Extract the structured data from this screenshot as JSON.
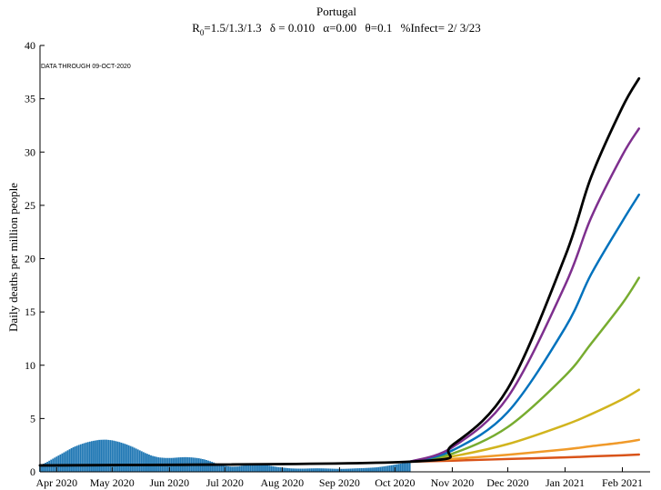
{
  "chart_data": {
    "type": "line",
    "title": "Portugal",
    "subtitle": {
      "r0_prefix": "R",
      "r0_sub": "0",
      "r0_values": "=1.5/1.3/1.3",
      "delta": "δ = 0.010",
      "alpha": "α=0.00",
      "theta": "θ=0.1",
      "infect": "%Infect= 2/ 3/23"
    },
    "annotation": "DATA THROUGH 09-OCT-2020",
    "xlabel": "",
    "ylabel": "Daily deaths per million people",
    "ylim": [
      0,
      40
    ],
    "yticks": [
      0,
      5,
      10,
      15,
      20,
      25,
      30,
      35,
      40
    ],
    "xlim": [
      "2020-03-23",
      "2021-02-16"
    ],
    "xticks": [
      {
        "date": "2020-04-01",
        "label": "Apr 2020"
      },
      {
        "date": "2020-05-01",
        "label": "May 2020"
      },
      {
        "date": "2020-06-01",
        "label": "Jun 2020"
      },
      {
        "date": "2020-07-01",
        "label": "Jul 2020"
      },
      {
        "date": "2020-08-01",
        "label": "Aug 2020"
      },
      {
        "date": "2020-09-01",
        "label": "Sep 2020"
      },
      {
        "date": "2020-10-01",
        "label": "Oct 2020"
      },
      {
        "date": "2020-11-01",
        "label": "Nov 2020"
      },
      {
        "date": "2020-12-01",
        "label": "Dec 2020"
      },
      {
        "date": "2021-01-01",
        "label": "Jan 2021"
      },
      {
        "date": "2021-02-01",
        "label": "Feb 2021"
      }
    ],
    "observed_bars": {
      "color": "#1f77b4",
      "start_date": "2020-03-23",
      "end_date": "2020-10-09",
      "values": [
        0.6,
        0.9,
        1.25,
        1.6,
        1.95,
        2.3,
        2.55,
        2.75,
        2.9,
        3.0,
        3.02,
        2.95,
        2.8,
        2.6,
        2.35,
        2.05,
        1.75,
        1.5,
        1.35,
        1.3,
        1.3,
        1.35,
        1.38,
        1.35,
        1.28,
        1.15,
        0.95,
        0.72,
        0.55,
        0.48,
        0.5,
        0.6,
        0.7,
        0.72,
        0.65,
        0.55,
        0.45,
        0.38,
        0.32,
        0.3,
        0.3,
        0.32,
        0.33,
        0.32,
        0.3,
        0.28,
        0.28,
        0.3,
        0.33,
        0.35,
        0.38,
        0.42,
        0.5,
        0.6,
        0.7,
        0.82,
        0.95
      ]
    },
    "series": [
      {
        "color": "#000000",
        "width": 2.8,
        "x": [
          "2020-03-23",
          "2020-10-09",
          "2020-11-01",
          "2020-12-01",
          "2021-01-01",
          "2021-01-15",
          "2021-02-01",
          "2021-02-10"
        ],
        "values": [
          0.6,
          0.95,
          2.5,
          7.8,
          20.2,
          27.6,
          34.2,
          36.9
        ]
      },
      {
        "color": "#7e2f8e",
        "width": 2.5,
        "x": [
          "2020-10-09",
          "2020-11-01",
          "2020-12-01",
          "2021-01-01",
          "2021-01-15",
          "2021-02-01",
          "2021-02-10"
        ],
        "values": [
          0.95,
          2.3,
          7.0,
          17.5,
          23.8,
          29.7,
          32.2
        ]
      },
      {
        "color": "#0072bd",
        "width": 2.5,
        "x": [
          "2020-10-09",
          "2020-11-01",
          "2020-12-01",
          "2021-01-01",
          "2021-01-15",
          "2021-02-01",
          "2021-02-10"
        ],
        "values": [
          0.95,
          2.0,
          5.6,
          13.5,
          18.5,
          23.5,
          26.0
        ]
      },
      {
        "color": "#77ac30",
        "width": 2.5,
        "x": [
          "2020-10-09",
          "2020-11-01",
          "2020-12-01",
          "2021-01-01",
          "2021-01-15",
          "2021-02-01",
          "2021-02-10"
        ],
        "values": [
          0.95,
          1.7,
          4.2,
          9.0,
          12.0,
          15.8,
          18.2
        ]
      },
      {
        "color": "#d1b41e",
        "width": 2.5,
        "x": [
          "2020-10-09",
          "2020-11-01",
          "2020-12-01",
          "2021-01-01",
          "2021-01-15",
          "2021-02-01",
          "2021-02-10"
        ],
        "values": [
          0.95,
          1.45,
          2.6,
          4.4,
          5.4,
          6.8,
          7.7
        ]
      },
      {
        "color": "#f09a2a",
        "width": 2.5,
        "x": [
          "2020-10-09",
          "2020-11-01",
          "2020-12-01",
          "2021-01-01",
          "2021-01-15",
          "2021-02-01",
          "2021-02-10"
        ],
        "values": [
          0.95,
          1.2,
          1.6,
          2.1,
          2.4,
          2.75,
          3.0
        ]
      },
      {
        "color": "#d95319",
        "width": 2.5,
        "x": [
          "2020-10-09",
          "2020-11-01",
          "2020-12-01",
          "2021-01-01",
          "2021-01-15",
          "2021-02-01",
          "2021-02-10"
        ],
        "values": [
          0.95,
          1.05,
          1.2,
          1.35,
          1.45,
          1.55,
          1.62
        ]
      }
    ],
    "grid": false,
    "legend": "none"
  }
}
